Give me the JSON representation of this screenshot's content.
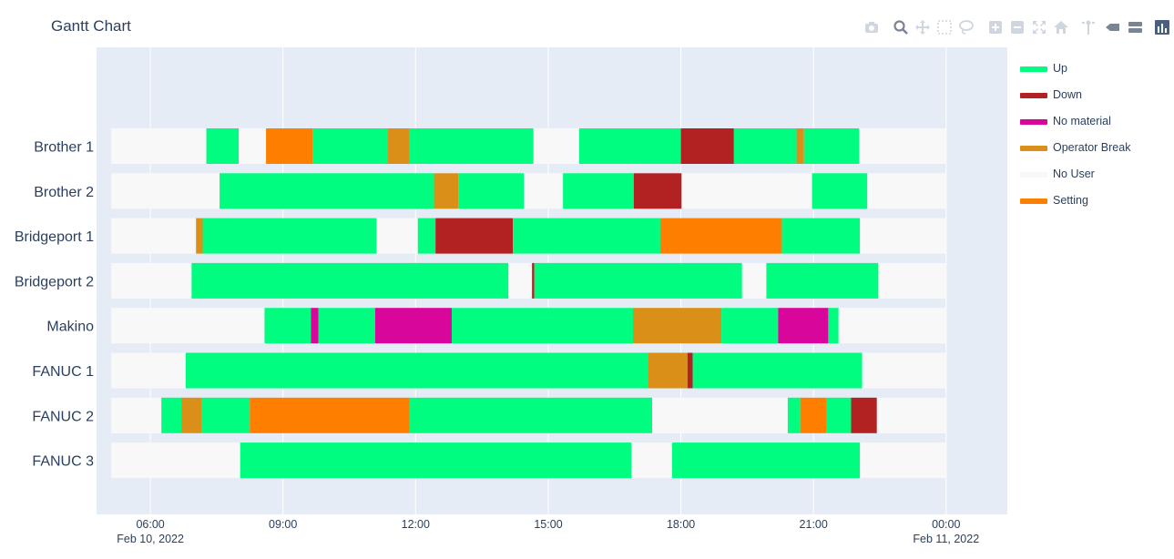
{
  "chart_data": {
    "type": "gantt",
    "title": "Gantt Chart",
    "x_axis": {
      "range": [
        "2022-02-10 04:47",
        "2022-02-11 01:23"
      ],
      "ticks": [
        {
          "t": "2022-02-10 06:00",
          "label": "06:00",
          "sublabel": "Feb 10, 2022"
        },
        {
          "t": "2022-02-10 09:00",
          "label": "09:00",
          "sublabel": ""
        },
        {
          "t": "2022-02-10 12:00",
          "label": "12:00",
          "sublabel": ""
        },
        {
          "t": "2022-02-10 15:00",
          "label": "15:00",
          "sublabel": ""
        },
        {
          "t": "2022-02-10 18:00",
          "label": "18:00",
          "sublabel": ""
        },
        {
          "t": "2022-02-10 21:00",
          "label": "21:00",
          "sublabel": ""
        },
        {
          "t": "2022-02-11 00:00",
          "label": "00:00",
          "sublabel": "Feb 11, 2022"
        }
      ]
    },
    "categories": [
      "Brother 1",
      "Brother 2",
      "Bridgeport 1",
      "Bridgeport 2",
      "Makino",
      "FANUC 1",
      "FANUC 2",
      "FANUC 3"
    ],
    "legend": [
      {
        "name": "Up",
        "color": "#00fd7f"
      },
      {
        "name": "Down",
        "color": "#b22222"
      },
      {
        "name": "No material",
        "color": "#d8069a"
      },
      {
        "name": "Operator Break",
        "color": "#d98f18"
      },
      {
        "name": "No User",
        "color": "#f8f8f8"
      },
      {
        "name": "Setting",
        "color": "#fe7f00"
      }
    ],
    "tasks": [
      {
        "resource": "Brother 1",
        "status": "No User",
        "start": "2022-02-10 05:07",
        "end": "2022-02-10 07:16"
      },
      {
        "resource": "Brother 1",
        "status": "Up",
        "start": "2022-02-10 07:16",
        "end": "2022-02-10 08:00"
      },
      {
        "resource": "Brother 1",
        "status": "No User",
        "start": "2022-02-10 08:00",
        "end": "2022-02-10 08:37"
      },
      {
        "resource": "Brother 1",
        "status": "Setting",
        "start": "2022-02-10 08:37",
        "end": "2022-02-10 09:40"
      },
      {
        "resource": "Brother 1",
        "status": "Up",
        "start": "2022-02-10 09:40",
        "end": "2022-02-10 11:22"
      },
      {
        "resource": "Brother 1",
        "status": "Operator Break",
        "start": "2022-02-10 11:22",
        "end": "2022-02-10 11:52"
      },
      {
        "resource": "Brother 1",
        "status": "Up",
        "start": "2022-02-10 11:52",
        "end": "2022-02-10 14:40"
      },
      {
        "resource": "Brother 1",
        "status": "No User",
        "start": "2022-02-10 14:40",
        "end": "2022-02-10 15:42"
      },
      {
        "resource": "Brother 1",
        "status": "Up",
        "start": "2022-02-10 15:42",
        "end": "2022-02-10 18:00"
      },
      {
        "resource": "Brother 1",
        "status": "Down",
        "start": "2022-02-10 18:00",
        "end": "2022-02-10 19:12"
      },
      {
        "resource": "Brother 1",
        "status": "Up",
        "start": "2022-02-10 19:12",
        "end": "2022-02-10 20:37"
      },
      {
        "resource": "Brother 1",
        "status": "Operator Break",
        "start": "2022-02-10 20:37",
        "end": "2022-02-10 20:47"
      },
      {
        "resource": "Brother 1",
        "status": "Up",
        "start": "2022-02-10 20:47",
        "end": "2022-02-10 22:02"
      },
      {
        "resource": "Brother 1",
        "status": "No User",
        "start": "2022-02-10 22:02",
        "end": "2022-02-11 00:00"
      },
      {
        "resource": "Brother 2",
        "status": "No User",
        "start": "2022-02-10 05:07",
        "end": "2022-02-10 07:34"
      },
      {
        "resource": "Brother 2",
        "status": "Up",
        "start": "2022-02-10 07:34",
        "end": "2022-02-10 12:25"
      },
      {
        "resource": "Brother 2",
        "status": "Operator Break",
        "start": "2022-02-10 12:25",
        "end": "2022-02-10 12:58"
      },
      {
        "resource": "Brother 2",
        "status": "Up",
        "start": "2022-02-10 12:58",
        "end": "2022-02-10 14:27"
      },
      {
        "resource": "Brother 2",
        "status": "No User",
        "start": "2022-02-10 14:27",
        "end": "2022-02-10 15:20"
      },
      {
        "resource": "Brother 2",
        "status": "Up",
        "start": "2022-02-10 15:20",
        "end": "2022-02-10 16:56"
      },
      {
        "resource": "Brother 2",
        "status": "Down",
        "start": "2022-02-10 16:56",
        "end": "2022-02-10 18:01"
      },
      {
        "resource": "Brother 2",
        "status": "No User",
        "start": "2022-02-10 18:01",
        "end": "2022-02-10 20:58"
      },
      {
        "resource": "Brother 2",
        "status": "Up",
        "start": "2022-02-10 20:58",
        "end": "2022-02-10 22:13"
      },
      {
        "resource": "Brother 2",
        "status": "No User",
        "start": "2022-02-10 22:13",
        "end": "2022-02-11 00:00"
      },
      {
        "resource": "Bridgeport 1",
        "status": "No User",
        "start": "2022-02-10 05:07",
        "end": "2022-02-10 07:02"
      },
      {
        "resource": "Bridgeport 1",
        "status": "Operator Break",
        "start": "2022-02-10 07:02",
        "end": "2022-02-10 07:11"
      },
      {
        "resource": "Bridgeport 1",
        "status": "Up",
        "start": "2022-02-10 07:11",
        "end": "2022-02-10 11:07"
      },
      {
        "resource": "Bridgeport 1",
        "status": "No User",
        "start": "2022-02-10 11:07",
        "end": "2022-02-10 12:03"
      },
      {
        "resource": "Bridgeport 1",
        "status": "Up",
        "start": "2022-02-10 12:03",
        "end": "2022-02-10 12:27"
      },
      {
        "resource": "Bridgeport 1",
        "status": "Down",
        "start": "2022-02-10 12:27",
        "end": "2022-02-10 14:12"
      },
      {
        "resource": "Bridgeport 1",
        "status": "Up",
        "start": "2022-02-10 14:12",
        "end": "2022-02-10 17:32"
      },
      {
        "resource": "Bridgeport 1",
        "status": "Setting",
        "start": "2022-02-10 17:32",
        "end": "2022-02-10 20:17"
      },
      {
        "resource": "Bridgeport 1",
        "status": "Up",
        "start": "2022-02-10 20:17",
        "end": "2022-02-10 22:03"
      },
      {
        "resource": "Bridgeport 1",
        "status": "No User",
        "start": "2022-02-10 22:03",
        "end": "2022-02-11 00:00"
      },
      {
        "resource": "Bridgeport 2",
        "status": "No User",
        "start": "2022-02-10 05:07",
        "end": "2022-02-10 06:56"
      },
      {
        "resource": "Bridgeport 2",
        "status": "Up",
        "start": "2022-02-10 06:56",
        "end": "2022-02-10 14:06"
      },
      {
        "resource": "Bridgeport 2",
        "status": "No User",
        "start": "2022-02-10 14:06",
        "end": "2022-02-10 14:38"
      },
      {
        "resource": "Bridgeport 2",
        "status": "Down",
        "start": "2022-02-10 14:38",
        "end": "2022-02-10 14:41"
      },
      {
        "resource": "Bridgeport 2",
        "status": "Up",
        "start": "2022-02-10 14:41",
        "end": "2022-02-10 19:23"
      },
      {
        "resource": "Bridgeport 2",
        "status": "No User",
        "start": "2022-02-10 19:23",
        "end": "2022-02-10 19:56"
      },
      {
        "resource": "Bridgeport 2",
        "status": "Up",
        "start": "2022-02-10 19:56",
        "end": "2022-02-10 22:28"
      },
      {
        "resource": "Bridgeport 2",
        "status": "No User",
        "start": "2022-02-10 22:28",
        "end": "2022-02-11 00:00"
      },
      {
        "resource": "Makino",
        "status": "No User",
        "start": "2022-02-10 05:07",
        "end": "2022-02-10 08:35"
      },
      {
        "resource": "Makino",
        "status": "Up",
        "start": "2022-02-10 08:35",
        "end": "2022-02-10 09:38"
      },
      {
        "resource": "Makino",
        "status": "No material",
        "start": "2022-02-10 09:38",
        "end": "2022-02-10 09:48"
      },
      {
        "resource": "Makino",
        "status": "Up",
        "start": "2022-02-10 09:48",
        "end": "2022-02-10 11:05"
      },
      {
        "resource": "Makino",
        "status": "No material",
        "start": "2022-02-10 11:05",
        "end": "2022-02-10 12:49"
      },
      {
        "resource": "Makino",
        "status": "Up",
        "start": "2022-02-10 12:49",
        "end": "2022-02-10 16:55"
      },
      {
        "resource": "Makino",
        "status": "Operator Break",
        "start": "2022-02-10 16:55",
        "end": "2022-02-10 18:55"
      },
      {
        "resource": "Makino",
        "status": "Up",
        "start": "2022-02-10 18:55",
        "end": "2022-02-10 20:12"
      },
      {
        "resource": "Makino",
        "status": "No material",
        "start": "2022-02-10 20:12",
        "end": "2022-02-10 21:20"
      },
      {
        "resource": "Makino",
        "status": "Up",
        "start": "2022-02-10 21:20",
        "end": "2022-02-10 21:34"
      },
      {
        "resource": "Makino",
        "status": "No User",
        "start": "2022-02-10 21:34",
        "end": "2022-02-11 00:00"
      },
      {
        "resource": "FANUC 1",
        "status": "No User",
        "start": "2022-02-10 05:07",
        "end": "2022-02-10 06:48"
      },
      {
        "resource": "FANUC 1",
        "status": "Up",
        "start": "2022-02-10 06:48",
        "end": "2022-02-10 17:15"
      },
      {
        "resource": "FANUC 1",
        "status": "Operator Break",
        "start": "2022-02-10 17:15",
        "end": "2022-02-10 18:09"
      },
      {
        "resource": "FANUC 1",
        "status": "Down",
        "start": "2022-02-10 18:09",
        "end": "2022-02-10 18:16"
      },
      {
        "resource": "FANUC 1",
        "status": "Up",
        "start": "2022-02-10 18:16",
        "end": "2022-02-10 22:06"
      },
      {
        "resource": "FANUC 1",
        "status": "No User",
        "start": "2022-02-10 22:06",
        "end": "2022-02-11 00:00"
      },
      {
        "resource": "FANUC 2",
        "status": "No User",
        "start": "2022-02-10 05:07",
        "end": "2022-02-10 06:15"
      },
      {
        "resource": "FANUC 2",
        "status": "Up",
        "start": "2022-02-10 06:15",
        "end": "2022-02-10 06:42"
      },
      {
        "resource": "FANUC 2",
        "status": "Operator Break",
        "start": "2022-02-10 06:42",
        "end": "2022-02-10 07:10"
      },
      {
        "resource": "FANUC 2",
        "status": "Up",
        "start": "2022-02-10 07:10",
        "end": "2022-02-10 08:15"
      },
      {
        "resource": "FANUC 2",
        "status": "Setting",
        "start": "2022-02-10 08:15",
        "end": "2022-02-10 11:52"
      },
      {
        "resource": "FANUC 2",
        "status": "Up",
        "start": "2022-02-10 11:52",
        "end": "2022-02-10 17:21"
      },
      {
        "resource": "FANUC 2",
        "status": "No User",
        "start": "2022-02-10 17:21",
        "end": "2022-02-10 20:25"
      },
      {
        "resource": "FANUC 2",
        "status": "Up",
        "start": "2022-02-10 20:25",
        "end": "2022-02-10 20:42"
      },
      {
        "resource": "FANUC 2",
        "status": "Setting",
        "start": "2022-02-10 20:42",
        "end": "2022-02-10 21:18"
      },
      {
        "resource": "FANUC 2",
        "status": "Up",
        "start": "2022-02-10 21:18",
        "end": "2022-02-10 21:51"
      },
      {
        "resource": "FANUC 2",
        "status": "Down",
        "start": "2022-02-10 21:51",
        "end": "2022-02-10 22:26"
      },
      {
        "resource": "FANUC 2",
        "status": "No User",
        "start": "2022-02-10 22:26",
        "end": "2022-02-11 00:00"
      },
      {
        "resource": "FANUC 3",
        "status": "No User",
        "start": "2022-02-10 05:07",
        "end": "2022-02-10 08:02"
      },
      {
        "resource": "FANUC 3",
        "status": "Up",
        "start": "2022-02-10 08:02",
        "end": "2022-02-10 16:53"
      },
      {
        "resource": "FANUC 3",
        "status": "No User",
        "start": "2022-02-10 16:53",
        "end": "2022-02-10 17:48"
      },
      {
        "resource": "FANUC 3",
        "status": "Up",
        "start": "2022-02-10 17:48",
        "end": "2022-02-10 22:03"
      },
      {
        "resource": "FANUC 3",
        "status": "No User",
        "start": "2022-02-10 22:03",
        "end": "2022-02-11 00:00"
      }
    ]
  },
  "modebar": {
    "icons": [
      "camera-icon",
      "zoom-icon",
      "pan-icon",
      "box-select-icon",
      "lasso-select-icon",
      "zoom-in-icon",
      "zoom-out-icon",
      "autoscale-icon",
      "reset-axes-icon",
      "toggle-spike-lines-icon",
      "show-closest-icon",
      "compare-hover-icon",
      "plotly-logo-icon"
    ]
  }
}
